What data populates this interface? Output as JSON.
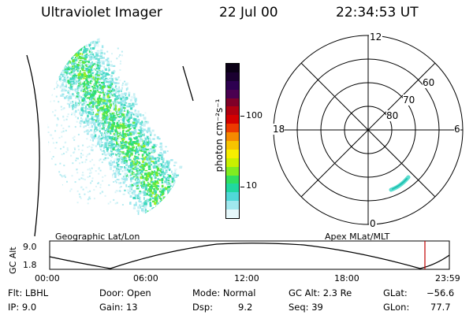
{
  "header": {
    "instrument": "Ultraviolet Imager",
    "date": "22 Jul 00",
    "time": "22:34:53 UT"
  },
  "colorbar": {
    "unit": "photon cm⁻²s⁻¹",
    "ticks": [
      "100",
      "10"
    ],
    "colors": [
      "#0b0016",
      "#1a0030",
      "#2d0050",
      "#4a0050",
      "#800028",
      "#b00010",
      "#d40000",
      "#ec3a00",
      "#f58a00",
      "#f7c400",
      "#f7ee00",
      "#c8f000",
      "#80ec20",
      "#30e060",
      "#20d8a0",
      "#50d8d8",
      "#a0e8ee",
      "#e6f8fb"
    ]
  },
  "polar_plot": {
    "mlt_labels": {
      "top": "12",
      "left": "18",
      "right": "6",
      "bottom": "0"
    },
    "lat_labels": [
      "60",
      "70",
      "80"
    ]
  },
  "timeline": {
    "left_label": "Geographic Lat/Lon",
    "right_label": "Apex MLat/MLT",
    "y_axis_title": "GC Alt",
    "y_ticks": [
      "9.0",
      "1.8"
    ],
    "x_ticks": [
      "00:00",
      "06:00",
      "12:00",
      "18:00",
      "23:59"
    ],
    "marker_color": "#c00000"
  },
  "info": {
    "filter": "Flt: LBHL",
    "door": "Door: Open",
    "mode": "Mode: Normal",
    "gc_alt": "GC Alt: 2.3 Re",
    "glat_label": "GLat:",
    "glat_value": "−56.6",
    "ip": "IP: 9.0",
    "gain": "Gain: 13",
    "dsp_label": "Dsp:",
    "dsp_value": "9.2",
    "seq": "Seq: 39",
    "glon_label": "GLon:",
    "glon_value": "77.7"
  }
}
